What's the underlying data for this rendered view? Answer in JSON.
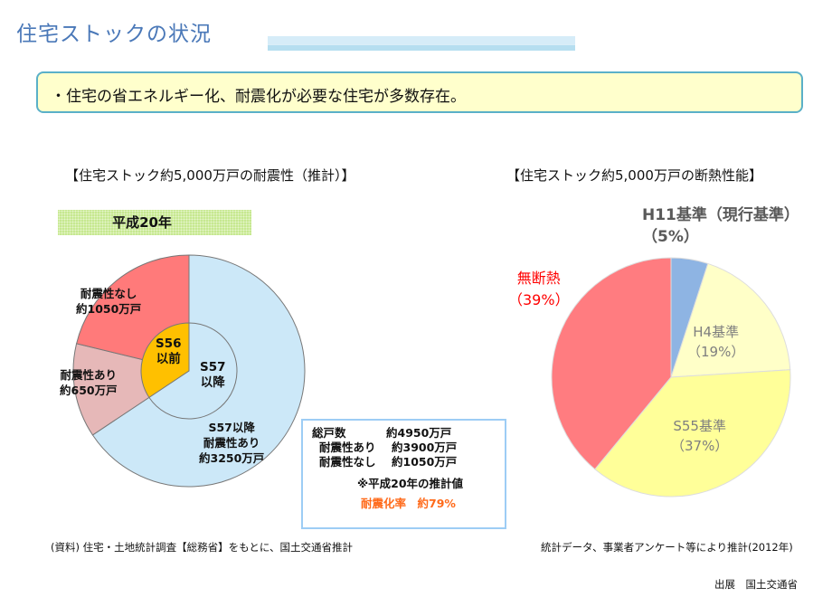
{
  "header": {
    "title": "住宅ストックの状況"
  },
  "callout": {
    "text": "・住宅の省エネルギー化、耐震化が必要な住宅が多数存在。"
  },
  "left": {
    "title": "【住宅ストック約5,000万戸の耐震性（推計）】",
    "year_band": "平成20年",
    "summary": {
      "total_label": "総戸数",
      "total_value": "約4950万戸",
      "yes_label": "耐震性あり",
      "yes_value": "約3900万戸",
      "no_label": "耐震性なし",
      "no_value": "約1050万戸",
      "note": "※平成20年の推計値",
      "rate": "耐震化率　約79%"
    },
    "source": "(資料) 住宅・土地統計調査【総務省】をもとに、国土交通省推計"
  },
  "right": {
    "title": "【住宅ストック約5,000万戸の断熱性能】",
    "source": "統計データ、事業者アンケート等により推計(2012年)"
  },
  "footer": {
    "credit": "出展　国土交通省"
  },
  "chart_data": [
    {
      "type": "pie",
      "title": "住宅ストック約5,000万戸の耐震性（推計）",
      "subtitle": "平成20年",
      "unit": "万戸",
      "outer": [
        {
          "label1": "S57以降",
          "label2": "耐震性あり",
          "label3": "約3250万戸",
          "value": 3250,
          "color": "#cce8f8"
        },
        {
          "label1": "耐震性あり",
          "label2": "約650万戸",
          "value": 650,
          "color": "#e6b8b8"
        },
        {
          "label1": "耐震性なし",
          "label2": "約1050万戸",
          "value": 1050,
          "color": "#ff7a7a"
        }
      ],
      "inner": [
        {
          "label1": "S57",
          "label2": "以降",
          "value": 3250,
          "color": "#cce8f8"
        },
        {
          "label1": "S56",
          "label2": "以前",
          "value": 1700,
          "color": "#ffc000"
        }
      ]
    },
    {
      "type": "pie",
      "title": "住宅ストック約5,000万戸の断熱性能",
      "unit": "%",
      "slices": [
        {
          "label": "H11基準（現行基準）",
          "pct": "（5%）",
          "value": 5,
          "color": "#8eb4e3",
          "text_color": "#595959"
        },
        {
          "label": "H4基準",
          "pct": "（19%）",
          "value": 19,
          "color": "#ffffc8",
          "text_color": "#7f7f7f"
        },
        {
          "label": "S55基準",
          "pct": "（37%）",
          "value": 37,
          "color": "#ffff99",
          "text_color": "#7f7f7f"
        },
        {
          "label": "無断熱",
          "pct": "（39%）",
          "value": 39,
          "color": "#ff7c80",
          "text_color": "#ff0000"
        }
      ]
    }
  ]
}
